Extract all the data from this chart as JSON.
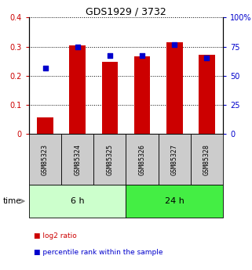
{
  "title": "GDS1929 / 3732",
  "samples": [
    "GSM85323",
    "GSM85324",
    "GSM85325",
    "GSM85326",
    "GSM85327",
    "GSM85328"
  ],
  "log2_ratio": [
    0.055,
    0.305,
    0.247,
    0.265,
    0.315,
    0.273
  ],
  "percentile_rank": [
    0.225,
    0.298,
    0.268,
    0.268,
    0.308,
    0.26
  ],
  "bar_color": "#cc0000",
  "dot_color": "#0000cc",
  "ylim_left": [
    0,
    0.4
  ],
  "ylim_right": [
    0,
    100
  ],
  "yticks_left": [
    0,
    0.1,
    0.2,
    0.3,
    0.4
  ],
  "ytick_labels_left": [
    "0",
    "0.1",
    "0.2",
    "0.3",
    "0.4"
  ],
  "yticks_right": [
    0,
    25,
    50,
    75,
    100
  ],
  "ytick_labels_right": [
    "0",
    "25",
    "50",
    "75",
    "100%"
  ],
  "group_6h_color": "#ccffcc",
  "group_24h_color": "#44ee44",
  "group_6h_label": "6 h",
  "group_24h_label": "24 h",
  "time_label": "time",
  "legend_items": [
    {
      "label": "log2 ratio",
      "color": "#cc0000"
    },
    {
      "label": "percentile rank within the sample",
      "color": "#0000cc"
    }
  ],
  "tick_label_color_left": "#cc0000",
  "tick_label_color_right": "#0000cc",
  "bar_width": 0.5,
  "dot_size": 25,
  "sample_bg_color": "#cccccc",
  "sample_font_size": 6.0,
  "title_fontsize": 9,
  "group_fontsize": 8,
  "legend_fontsize": 6.5
}
